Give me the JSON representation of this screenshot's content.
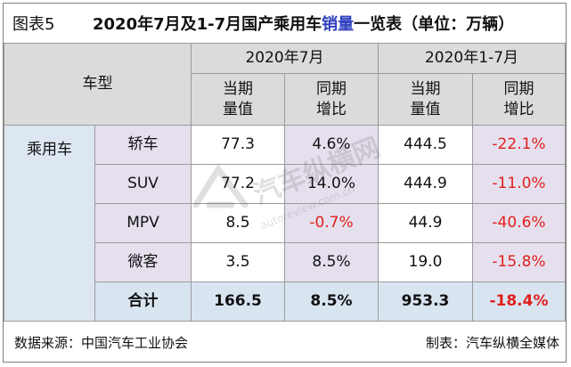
{
  "figure_no": "图表5",
  "title_pre": "2020年7月及1-7月国产乘用车",
  "title_highlight": "销量",
  "title_post": "一览表（单位：万辆）",
  "header": {
    "model": "车型",
    "period_month": "2020年7月",
    "period_ytd": "2020年1-7月",
    "current_l1": "当期",
    "current_l2": "量值",
    "yoy_l1": "同期",
    "yoy_l2": "增比"
  },
  "category": "乘用车",
  "rows": [
    {
      "type": "轿车",
      "m_val": "77.3",
      "m_yoy": "4.6%",
      "y_val": "444.5",
      "y_yoy": "-22.1%"
    },
    {
      "type": "SUV",
      "m_val": "77.2",
      "m_yoy": "14.0%",
      "y_val": "444.9",
      "y_yoy": "-11.0%"
    },
    {
      "type": "MPV",
      "m_val": "8.5",
      "m_yoy": "-0.7%",
      "y_val": "44.9",
      "y_yoy": "-40.6%"
    },
    {
      "type": "微客",
      "m_val": "3.5",
      "m_yoy": "8.5%",
      "y_val": "19.0",
      "y_yoy": "-15.8%"
    }
  ],
  "total": {
    "label": "合计",
    "m_val": "166.5",
    "m_yoy": "8.5%",
    "y_val": "953.3",
    "y_yoy": "-18.4%"
  },
  "footer": {
    "source": "数据来源：中国汽车工业协会",
    "maker": "制表：汽车纵横全媒体"
  },
  "watermark": {
    "text": "汽车纵横网",
    "sub": "autoreview.com.cn"
  },
  "colors": {
    "negative": "#e0201c",
    "highlight": "#2f3fbf"
  }
}
